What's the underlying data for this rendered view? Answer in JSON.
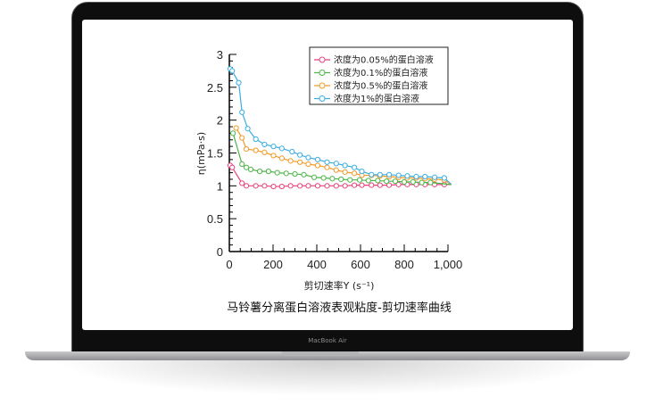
{
  "device": {
    "brand_label": "MacBook Air"
  },
  "chart_data": {
    "type": "line",
    "title": "马铃薯分离蛋白溶液表观粘度-剪切速率曲线",
    "xlabel": "剪切速率Y (s⁻¹)",
    "ylabel": "η(mPa·s)",
    "xlim": [
      0,
      1000
    ],
    "ylim": [
      0,
      3
    ],
    "xticks": [
      "0",
      "200",
      "400",
      "600",
      "800",
      "1,000"
    ],
    "yticks": [
      "0",
      "0.5",
      "1",
      "1.5",
      "2",
      "2.5",
      "3"
    ],
    "grid": false,
    "legend_position": "top-right",
    "series": [
      {
        "name": "浓度为0.05%的蛋白溶液",
        "color": "#e8417e",
        "x": [
          4,
          13,
          58,
          78,
          121,
          161,
          202,
          240,
          280,
          323,
          361,
          404,
          447,
          489,
          529,
          572,
          606,
          650,
          689,
          731,
          774,
          814,
          855,
          895,
          939,
          983,
          1016
        ],
        "y": [
          1.31,
          1.28,
          1.04,
          1.0,
          1.0,
          1.0,
          0.99,
          0.99,
          1.0,
          1.0,
          1.0,
          1.0,
          1.0,
          1.0,
          1.0,
          1.01,
          1.01,
          1.01,
          1.01,
          1.01,
          1.02,
          1.02,
          1.02,
          1.02,
          1.02,
          1.02,
          1.02
        ]
      },
      {
        "name": "浓度为0.1%的蛋白溶液",
        "color": "#4cb648",
        "x": [
          17,
          58,
          78,
          98,
          139,
          179,
          219,
          260,
          300,
          341,
          388,
          431,
          471,
          511,
          552,
          596,
          636,
          679,
          719,
          759,
          800,
          840,
          880,
          920,
          1016
        ],
        "y": [
          1.8,
          1.33,
          1.28,
          1.25,
          1.22,
          1.22,
          1.2,
          1.19,
          1.18,
          1.17,
          1.13,
          1.12,
          1.11,
          1.1,
          1.09,
          1.09,
          1.08,
          1.08,
          1.07,
          1.07,
          1.06,
          1.06,
          1.05,
          1.05,
          1.02
        ]
      },
      {
        "name": "浓度为0.5%的蛋白溶液",
        "color": "#f39a26",
        "x": [
          31,
          58,
          78,
          121,
          161,
          202,
          240,
          280,
          323,
          361,
          404,
          447,
          489,
          529,
          572,
          606,
          650,
          689,
          731,
          774,
          814,
          855,
          895,
          939,
          983,
          1016
        ],
        "y": [
          1.88,
          1.73,
          1.56,
          1.54,
          1.51,
          1.46,
          1.42,
          1.38,
          1.36,
          1.33,
          1.31,
          1.28,
          1.24,
          1.21,
          1.19,
          1.16,
          1.16,
          1.15,
          1.14,
          1.13,
          1.12,
          1.12,
          1.11,
          1.1,
          1.09,
          1.02
        ]
      },
      {
        "name": "浓度为1%的蛋白溶液",
        "color": "#3aaee3",
        "x": [
          4,
          13,
          43,
          58,
          84,
          121,
          161,
          202,
          240,
          287,
          323,
          361,
          404,
          447,
          489,
          529,
          572,
          606,
          650,
          689,
          731,
          774,
          814,
          855,
          895,
          939,
          983,
          1016
        ],
        "y": [
          2.78,
          2.75,
          2.57,
          2.12,
          1.87,
          1.71,
          1.63,
          1.6,
          1.57,
          1.52,
          1.47,
          1.43,
          1.4,
          1.36,
          1.34,
          1.31,
          1.28,
          1.22,
          1.17,
          1.17,
          1.17,
          1.16,
          1.15,
          1.14,
          1.14,
          1.13,
          1.12,
          1.02
        ]
      }
    ]
  }
}
